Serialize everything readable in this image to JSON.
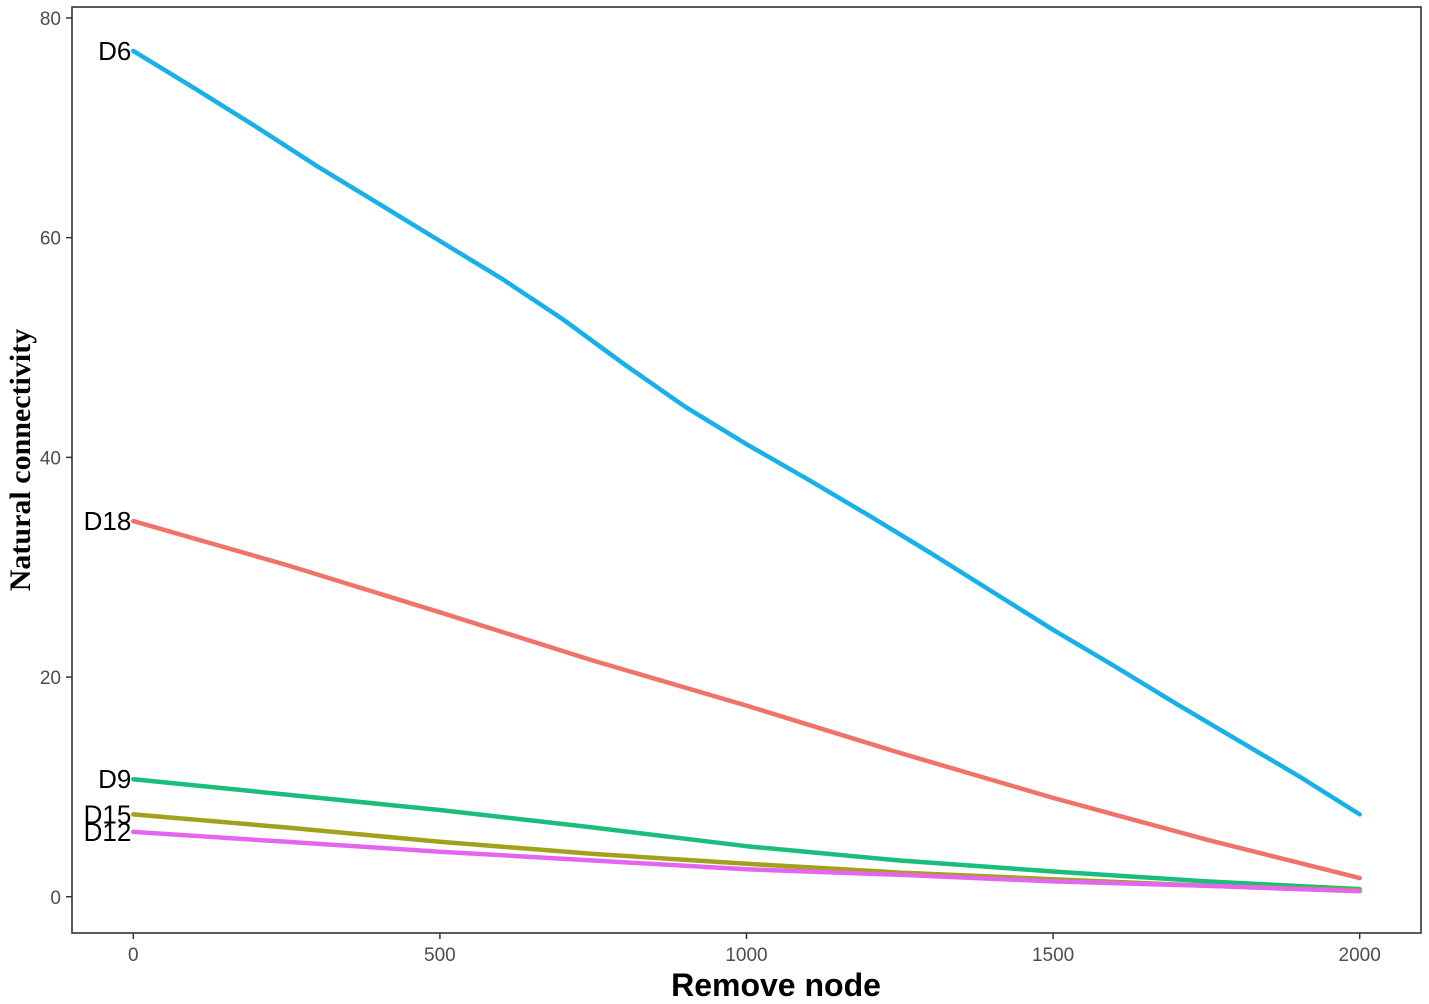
{
  "chart_data": {
    "type": "line",
    "title": "",
    "xlabel": "Remove node",
    "ylabel": "Natural connectivity",
    "xlim": [
      -100,
      2100
    ],
    "ylim": [
      -3.3,
      81
    ],
    "x_ticks": [
      0,
      500,
      1000,
      1500,
      2000
    ],
    "y_ticks": [
      0,
      20,
      40,
      60,
      80
    ],
    "grid": false,
    "legend": "none (direct labels at line starts)",
    "series": [
      {
        "name": "D6",
        "color": "#17b0e8",
        "points": [
          [
            0,
            77
          ],
          [
            100,
            73.6
          ],
          [
            200,
            70.1
          ],
          [
            300,
            66.5
          ],
          [
            400,
            63.1
          ],
          [
            500,
            59.7
          ],
          [
            600,
            56.3
          ],
          [
            700,
            52.6
          ],
          [
            800,
            48.5
          ],
          [
            900,
            44.6
          ],
          [
            1000,
            41.2
          ],
          [
            1100,
            38.0
          ],
          [
            1200,
            34.7
          ],
          [
            1300,
            31.3
          ],
          [
            1400,
            27.8
          ],
          [
            1500,
            24.3
          ],
          [
            1600,
            21.0
          ],
          [
            1700,
            17.6
          ],
          [
            1800,
            14.3
          ],
          [
            1900,
            11.0
          ],
          [
            2000,
            7.5
          ]
        ]
      },
      {
        "name": "D18",
        "color": "#f0736b",
        "points": [
          [
            0,
            34.2
          ],
          [
            250,
            30.2
          ],
          [
            500,
            25.9
          ],
          [
            750,
            21.5
          ],
          [
            1000,
            17.4
          ],
          [
            1250,
            13.1
          ],
          [
            1500,
            9.0
          ],
          [
            1750,
            5.2
          ],
          [
            2000,
            1.7
          ]
        ]
      },
      {
        "name": "D9",
        "color": "#19bd7c",
        "points": [
          [
            0,
            10.7
          ],
          [
            250,
            9.3
          ],
          [
            500,
            7.9
          ],
          [
            750,
            6.3
          ],
          [
            1000,
            4.6
          ],
          [
            1250,
            3.3
          ],
          [
            1500,
            2.3
          ],
          [
            1750,
            1.4
          ],
          [
            2000,
            0.7
          ]
        ]
      },
      {
        "name": "D15",
        "color": "#a3a11c",
        "points": [
          [
            0,
            7.5
          ],
          [
            250,
            6.3
          ],
          [
            500,
            5.0
          ],
          [
            750,
            3.9
          ],
          [
            1000,
            3.0
          ],
          [
            1250,
            2.2
          ],
          [
            1500,
            1.6
          ],
          [
            1750,
            1.0
          ],
          [
            2000,
            0.6
          ]
        ]
      },
      {
        "name": "D12",
        "color": "#e466ef",
        "points": [
          [
            0,
            5.9
          ],
          [
            250,
            5.0
          ],
          [
            500,
            4.1
          ],
          [
            750,
            3.3
          ],
          [
            1000,
            2.5
          ],
          [
            1250,
            2.0
          ],
          [
            1500,
            1.4
          ],
          [
            1750,
            1.0
          ],
          [
            2000,
            0.5
          ]
        ]
      }
    ]
  }
}
